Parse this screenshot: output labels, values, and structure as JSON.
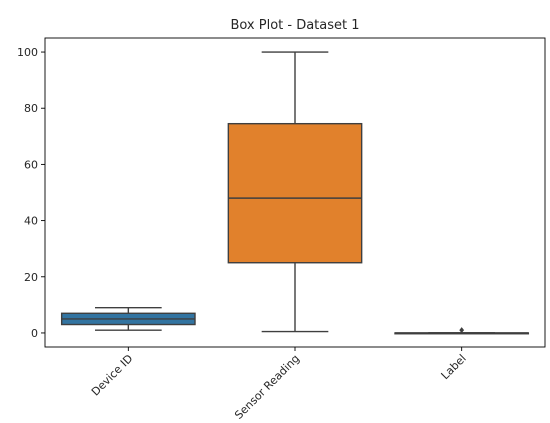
{
  "chart_data": {
    "type": "box",
    "title": "Box Plot - Dataset 1",
    "xlabel": "",
    "ylabel": "",
    "categories": [
      "Device ID",
      "Sensor Reading",
      "Label"
    ],
    "boxes": [
      {
        "category": "Device ID",
        "whisker_low": 1,
        "q1": 3,
        "median": 5,
        "q3": 7,
        "whisker_high": 9,
        "outliers": [],
        "color": "#3274a1"
      },
      {
        "category": "Sensor Reading",
        "whisker_low": 0.5,
        "q1": 25,
        "median": 48,
        "q3": 74.5,
        "whisker_high": 100,
        "outliers": [],
        "color": "#e1812c"
      },
      {
        "category": "Label",
        "whisker_low": 0,
        "q1": 0,
        "median": 0,
        "q3": 0,
        "whisker_high": 0,
        "outliers": [
          1
        ],
        "color": "#3a923a"
      }
    ],
    "ylim": [
      -5,
      105
    ],
    "yticks": [
      0,
      20,
      40,
      60,
      80,
      100
    ],
    "grid": false,
    "legend": "none"
  }
}
